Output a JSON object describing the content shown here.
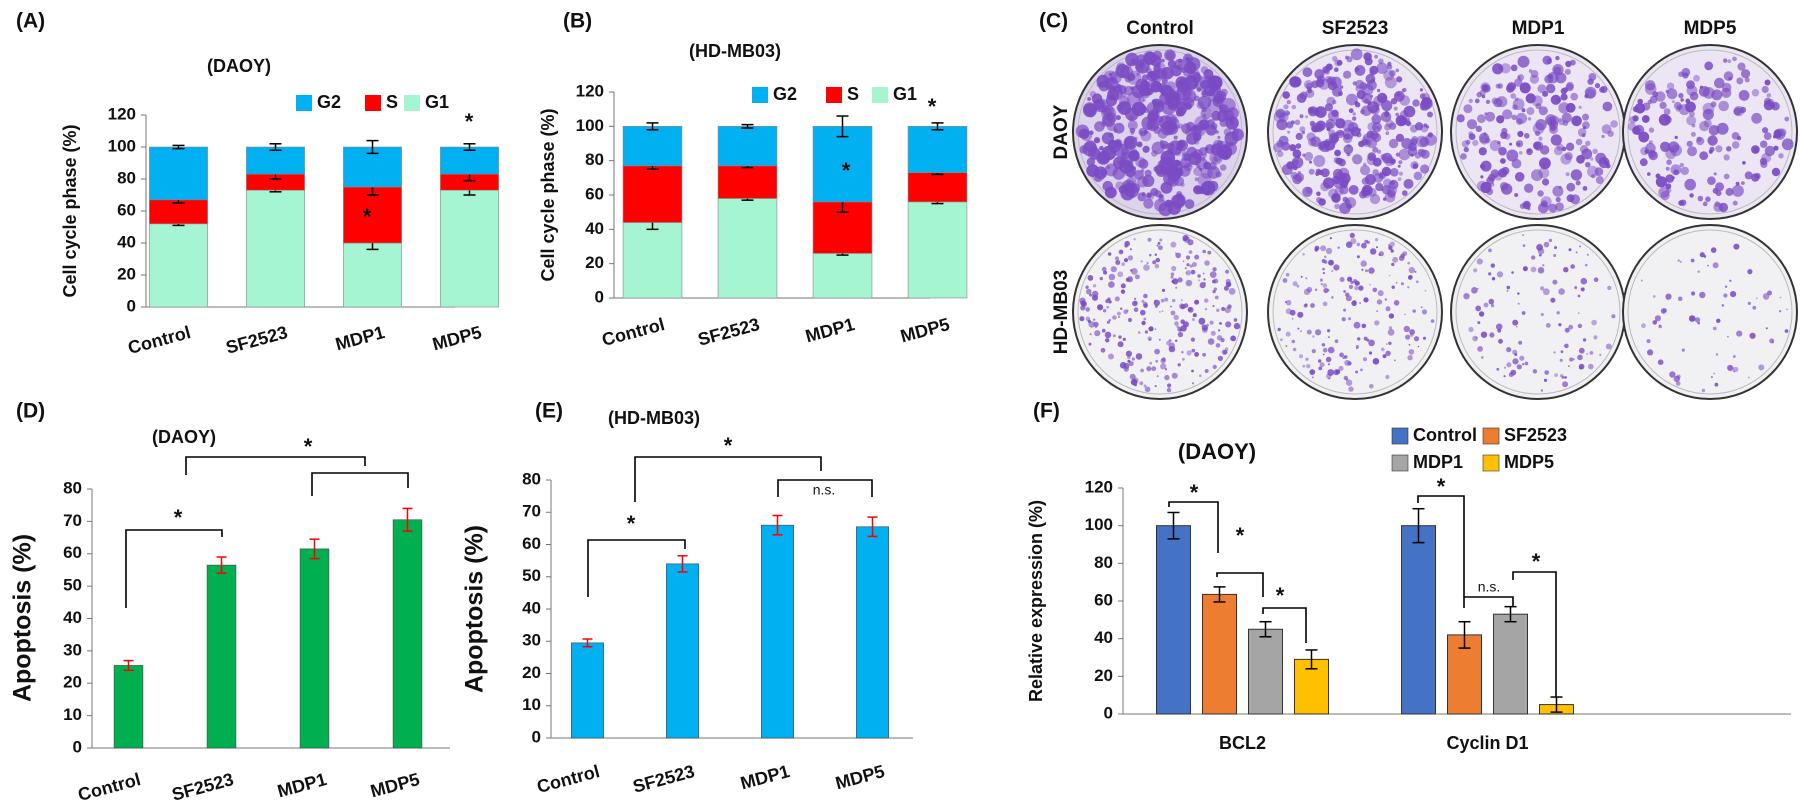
{
  "figure": {
    "panel_label": "(C)",
    "colony_columns": [
      "Control",
      "SF2523",
      "MDP1",
      "MDP5"
    ],
    "colony_rows": [
      "DAOY",
      "HD-MB03"
    ]
  },
  "chart_data": [
    {
      "type": "stacked_bar",
      "panel": "(A)",
      "title": "(DAOY)",
      "ylabel": "Cell cycle phase (%)",
      "categories": [
        "Control",
        "SF2523",
        "MDP1",
        "MDP5"
      ],
      "series": [
        {
          "name": "G1",
          "color": "#a6f5d2",
          "values": [
            52,
            73,
            40,
            73
          ],
          "errors": [
            1,
            1,
            4,
            3
          ]
        },
        {
          "name": "S",
          "color": "#ff0000",
          "values": [
            15,
            10,
            35,
            10
          ],
          "errors": [
            2,
            3,
            5,
            4
          ]
        },
        {
          "name": "G2",
          "color": "#00b0f0",
          "values": [
            33,
            17,
            25,
            17
          ],
          "errors": [
            1,
            2,
            4,
            2
          ]
        }
      ],
      "ylim": [
        0,
        120
      ],
      "yticks": [
        0,
        20,
        40,
        60,
        80,
        100,
        120
      ],
      "annotations": [
        "*",
        "*"
      ]
    },
    {
      "type": "stacked_bar",
      "panel": "(B)",
      "title": "(HD-MB03)",
      "ylabel": "Cell cycle phase (%)",
      "categories": [
        "Control",
        "SF2523",
        "MDP1",
        "MDP5"
      ],
      "series": [
        {
          "name": "G1",
          "color": "#a6f5d2",
          "values": [
            44,
            58,
            26,
            56
          ],
          "errors": [
            4,
            1,
            1,
            1
          ]
        },
        {
          "name": "S",
          "color": "#ff0000",
          "values": [
            33,
            19,
            30,
            17
          ],
          "errors": [
            2,
            1,
            6,
            1
          ]
        },
        {
          "name": "G2",
          "color": "#00b0f0",
          "values": [
            23,
            23,
            44,
            27
          ],
          "errors": [
            2,
            1,
            6,
            2
          ]
        }
      ],
      "ylim": [
        0,
        120
      ],
      "yticks": [
        0,
        20,
        40,
        60,
        80,
        100,
        120
      ],
      "annotations": [
        "*",
        "*"
      ]
    },
    {
      "type": "bar",
      "panel": "(D)",
      "title": "(DAOY)",
      "ylabel": "Apoptosis (%)",
      "categories": [
        "Control",
        "SF2523",
        "MDP1",
        "MDP5"
      ],
      "color": "#00b050",
      "error_color": "#ff0000",
      "values": [
        25.5,
        56.5,
        61.5,
        70.5
      ],
      "errors": [
        1.5,
        2.5,
        3,
        3.5
      ],
      "ylim": [
        0,
        80
      ],
      "yticks": [
        0,
        10,
        20,
        30,
        40,
        50,
        60,
        70,
        80
      ],
      "annotations": [
        "*",
        "*"
      ]
    },
    {
      "type": "bar",
      "panel": "(E)",
      "title": "(HD-MB03)",
      "ylabel": "Apoptosis (%)",
      "categories": [
        "Control",
        "SF2523",
        "MDP1",
        "MDP5"
      ],
      "color": "#00b0f0",
      "error_color": "#ff0000",
      "values": [
        29.5,
        54,
        66,
        65.5
      ],
      "errors": [
        1.2,
        2.5,
        3,
        3
      ],
      "ylim": [
        0,
        80
      ],
      "yticks": [
        0,
        10,
        20,
        30,
        40,
        50,
        60,
        70,
        80
      ],
      "annotations": [
        "*",
        "n.s.",
        "*"
      ]
    },
    {
      "type": "grouped_bar",
      "panel": "(F)",
      "title": "(DAOY)",
      "ylabel": "Relative expression (%)",
      "categories": [
        "BCL2",
        "Cyclin D1"
      ],
      "series": [
        {
          "name": "Control",
          "color": "#4472c4",
          "values": [
            100,
            100
          ],
          "errors": [
            7,
            9
          ]
        },
        {
          "name": "SF2523",
          "color": "#ed7d31",
          "values": [
            63.5,
            42
          ],
          "errors": [
            4,
            7
          ]
        },
        {
          "name": "MDP1",
          "color": "#a5a5a5",
          "values": [
            45,
            53
          ],
          "errors": [
            4,
            4
          ]
        },
        {
          "name": "MDP5",
          "color": "#ffc000",
          "values": [
            29,
            5
          ],
          "errors": [
            5,
            4
          ]
        }
      ],
      "ylim": [
        0,
        120
      ],
      "yticks": [
        0,
        20,
        40,
        60,
        80,
        100,
        120
      ],
      "annotations": [
        "*",
        "*",
        "*",
        "*",
        "n.s.",
        "*"
      ]
    }
  ]
}
